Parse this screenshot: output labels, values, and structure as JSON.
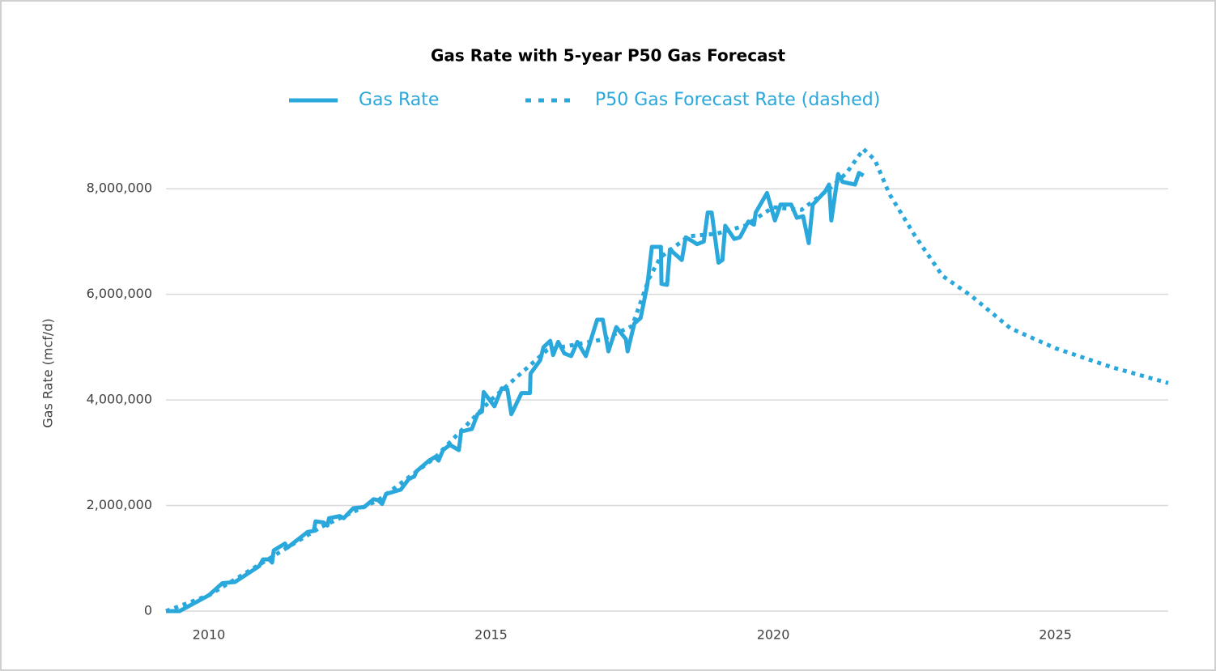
{
  "chart_data": {
    "type": "line",
    "title": "Gas Rate with 5-year P50 Gas Forecast",
    "y_label": "Gas Rate (mcf/d)",
    "legend": "top",
    "grid": true,
    "xlim": [
      2009.24,
      2027
    ],
    "xticks": [
      2010,
      2015,
      2020,
      2025
    ],
    "ylim": [
      0,
      9000000
    ],
    "yticks": [
      0,
      {
        "value": 2000000,
        "label": "2,000,000"
      },
      {
        "value": 4000000,
        "label": "4,000,000"
      },
      {
        "value": 6000000,
        "label": "6,000,000"
      },
      {
        "value": 8000000,
        "label": "8,000,000"
      }
    ],
    "series": [
      {
        "name": "Gas Rate",
        "color": "#2aa8dc",
        "dashed": false,
        "x": [
          2009.24,
          2009.48,
          2010.0,
          2010.24,
          2010.46,
          2010.89,
          2010.96,
          2011.07,
          2011.12,
          2011.15,
          2011.35,
          2011.39,
          2011.75,
          2011.86,
          2011.89,
          2012.03,
          2012.1,
          2012.13,
          2012.32,
          2012.39,
          2012.56,
          2012.75,
          2012.92,
          2013.0,
          2013.07,
          2013.14,
          2013.4,
          2013.54,
          2013.64,
          2013.68,
          2013.9,
          2014.01,
          2014.07,
          2014.15,
          2014.27,
          2014.43,
          2014.47,
          2014.66,
          2014.76,
          2014.84,
          2014.87,
          2015.06,
          2015.19,
          2015.29,
          2015.36,
          2015.54,
          2015.69,
          2015.7,
          2015.87,
          2015.93,
          2016.05,
          2016.1,
          2016.19,
          2016.3,
          2016.42,
          2016.53,
          2016.68,
          2016.88,
          2016.98,
          2017.08,
          2017.22,
          2017.39,
          2017.42,
          2017.54,
          2017.65,
          2017.77,
          2017.85,
          2018.01,
          2018.02,
          2018.12,
          2018.17,
          2018.38,
          2018.45,
          2018.58,
          2018.65,
          2018.77,
          2018.84,
          2018.91,
          2019.03,
          2019.1,
          2019.15,
          2019.31,
          2019.41,
          2019.56,
          2019.66,
          2019.69,
          2019.89,
          2020.03,
          2020.13,
          2020.32,
          2020.42,
          2020.53,
          2020.63,
          2020.7,
          2020.92,
          2020.99,
          2021.03,
          2021.15,
          2021.23,
          2021.45,
          2021.52,
          2021.6
        ],
        "values": [
          0,
          0,
          300000,
          530000,
          550000,
          850000,
          980000,
          980000,
          920000,
          1150000,
          1280000,
          1200000,
          1500000,
          1520000,
          1700000,
          1680000,
          1620000,
          1760000,
          1800000,
          1760000,
          1950000,
          1970000,
          2120000,
          2100000,
          2030000,
          2220000,
          2300000,
          2500000,
          2550000,
          2650000,
          2850000,
          2920000,
          2850000,
          3050000,
          3150000,
          3050000,
          3400000,
          3450000,
          3730000,
          3780000,
          4150000,
          3880000,
          4220000,
          4200000,
          3730000,
          4130000,
          4130000,
          4500000,
          4750000,
          5000000,
          5120000,
          4850000,
          5100000,
          4880000,
          4830000,
          5100000,
          4830000,
          5520000,
          5520000,
          4920000,
          5380000,
          5150000,
          4920000,
          5450000,
          5550000,
          6180000,
          6900000,
          6900000,
          6200000,
          6180000,
          6850000,
          6650000,
          7080000,
          7000000,
          6950000,
          7000000,
          7550000,
          7550000,
          6600000,
          6650000,
          7300000,
          7050000,
          7080000,
          7380000,
          7320000,
          7550000,
          7920000,
          7400000,
          7700000,
          7700000,
          7450000,
          7480000,
          6970000,
          7700000,
          7950000,
          8080000,
          7400000,
          8280000,
          8130000,
          8080000,
          8300000,
          8250000
        ]
      },
      {
        "name": "P50 Gas Forecast Rate (dashed)",
        "color": "#2aa8dc",
        "dashed": true,
        "x": [
          2009.24,
          2010,
          2011,
          2012,
          2013,
          2014,
          2015,
          2016,
          2017,
          2017.5,
          2017.8,
          2018,
          2018.5,
          2019,
          2019.5,
          2020,
          2020.5,
          2021,
          2021.3,
          2021.6,
          2021.8,
          2022.06,
          2022.5,
          2023,
          2023.5,
          2024.2,
          2025,
          2026,
          2027
        ],
        "values": [
          0,
          300000,
          950000,
          1600000,
          2100000,
          2900000,
          4000000,
          4950000,
          5150000,
          5400000,
          6300000,
          6700000,
          7100000,
          7150000,
          7300000,
          7650000,
          7600000,
          8000000,
          8300000,
          8750000,
          8550000,
          7900000,
          7130000,
          6350000,
          5980000,
          5360000,
          4980000,
          4620000,
          4320000
        ]
      }
    ]
  }
}
